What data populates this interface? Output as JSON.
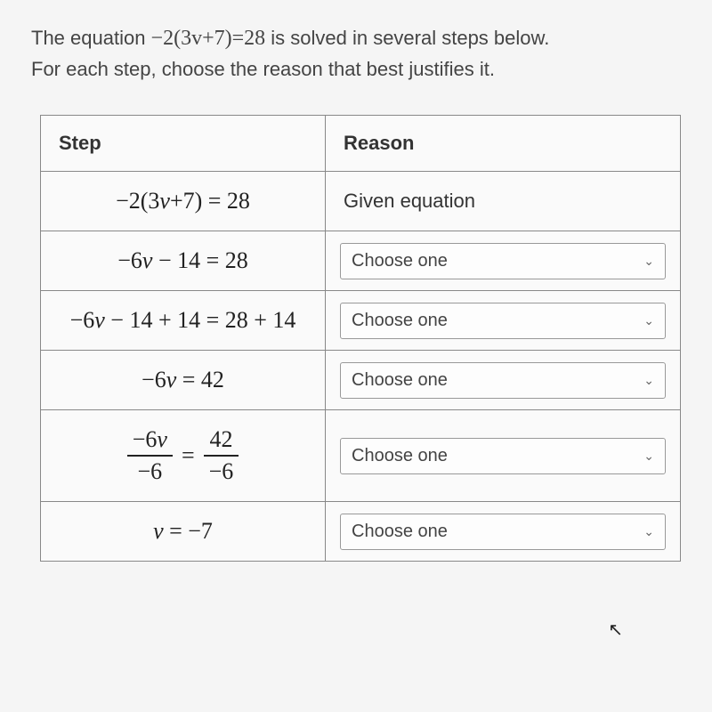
{
  "prompt": {
    "line1_pre": "The equation ",
    "equation": "−2(3v+7)=28",
    "line1_post": " is solved in several steps below.",
    "line2": "For each step, choose the reason that best justifies it."
  },
  "headers": {
    "step": "Step",
    "reason": "Reason"
  },
  "rows": [
    {
      "step_html": "−2(3<i>v</i>+7) = 28",
      "reason_type": "text",
      "reason": "Given equation"
    },
    {
      "step_html": "−6<i>v</i> − 14 = 28",
      "reason_type": "dropdown",
      "reason": "Choose one"
    },
    {
      "step_html": "−6<i>v</i> − 14 + 14 = 28 + 14",
      "reason_type": "dropdown",
      "reason": "Choose one"
    },
    {
      "step_html": "−6<i>v</i> = 42",
      "reason_type": "dropdown",
      "reason": "Choose one"
    },
    {
      "step_html": "<span class=\"fraction\"><span class=\"num\">−6<i>v</i></span><span class=\"den\">−6</span></span><span class=\"frac-eq\">=</span><span class=\"fraction\"><span class=\"num\">42</span><span class=\"den\">−6</span></span>",
      "reason_type": "dropdown",
      "reason": "Choose one"
    },
    {
      "step_html": "<i>v</i> = −7",
      "reason_type": "dropdown",
      "reason": "Choose one"
    }
  ],
  "dropdown_placeholder": "Choose one",
  "colors": {
    "border": "#888",
    "text": "#333",
    "dropdown_border": "#999",
    "background": "#f5f5f5"
  }
}
